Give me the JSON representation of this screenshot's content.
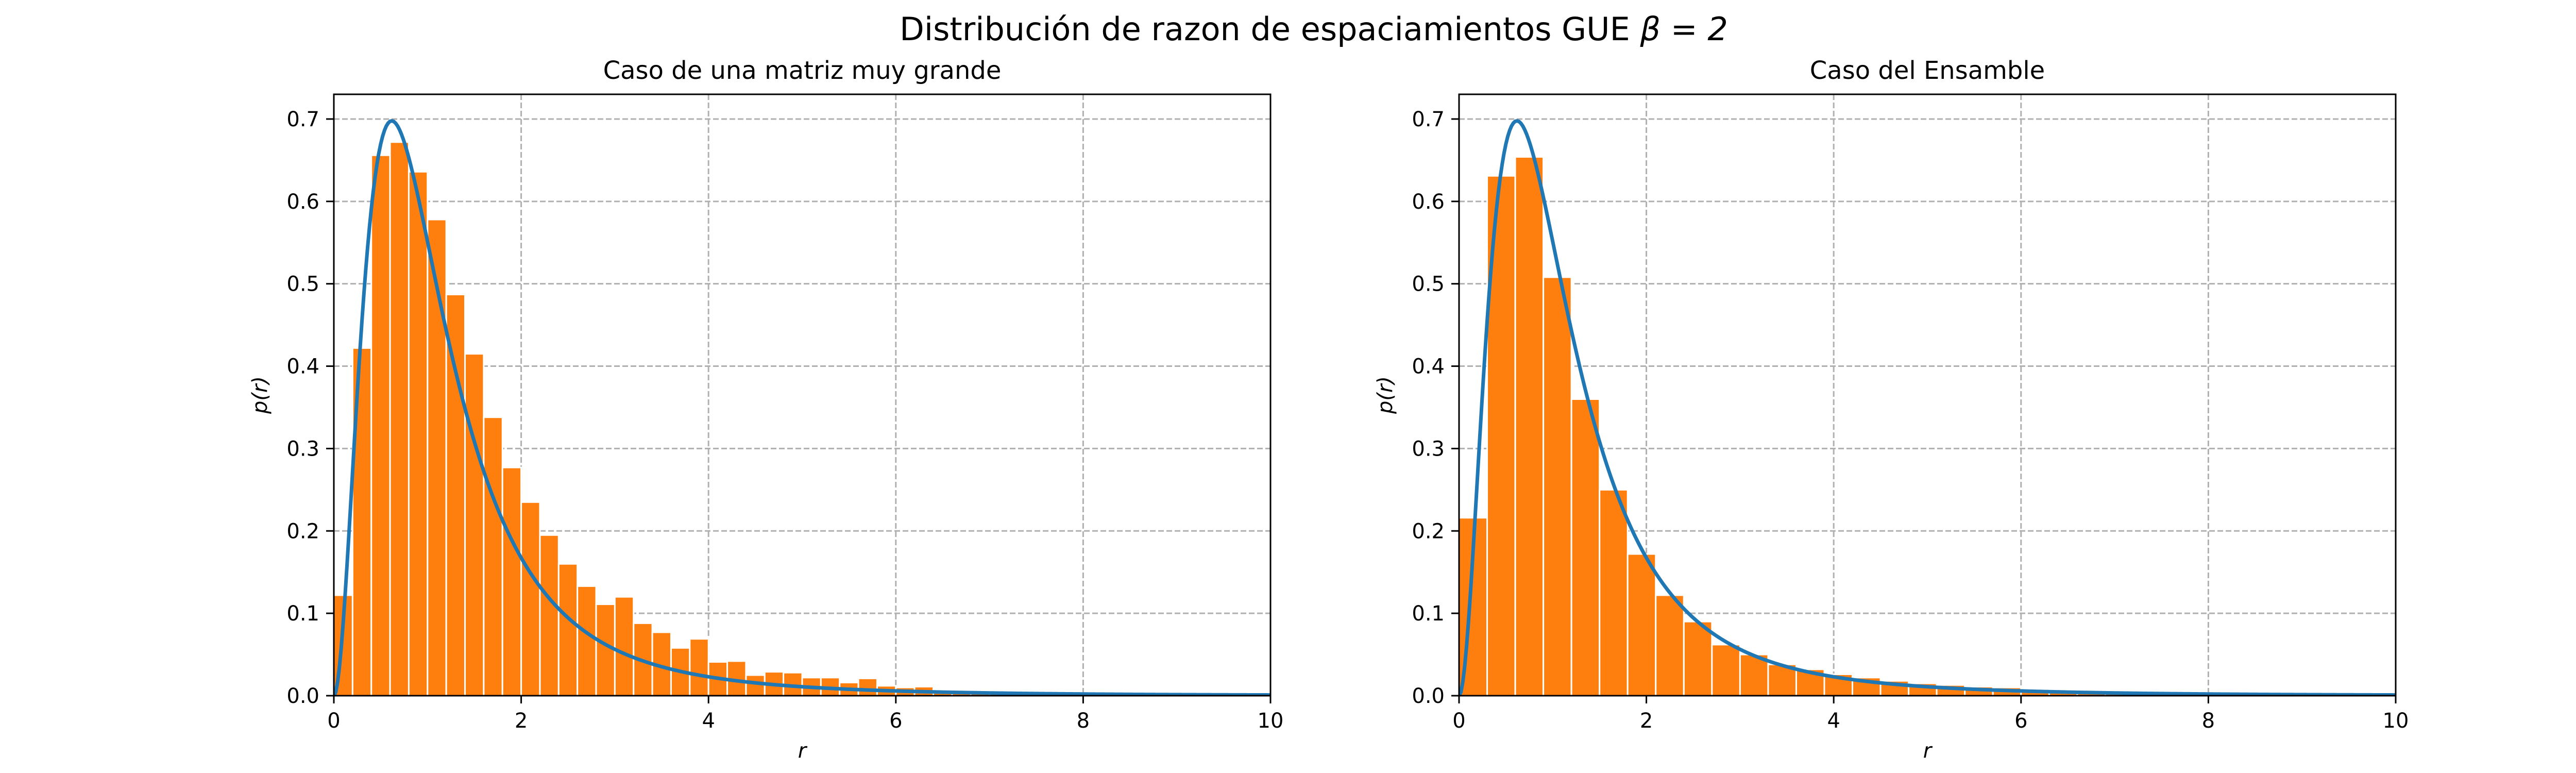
{
  "figure": {
    "suptitle_text": "Distribución de razon de espaciamientos GUE ",
    "suptitle_math": "β = 2"
  },
  "colors": {
    "bar_fill": "#ff7f0e",
    "bar_edge": "#ffffff",
    "curve": "#1f77b4",
    "grid": "#b0b0b0",
    "axes": "#000000"
  },
  "chart_data": [
    {
      "type": "bar",
      "title": "Caso de una matriz muy grande",
      "xlabel": "r",
      "ylabel": "p(r)",
      "xlim": [
        0,
        10
      ],
      "ylim": [
        0,
        0.73
      ],
      "xticks": [
        0,
        2,
        4,
        6,
        8,
        10
      ],
      "yticks": [
        0.0,
        0.1,
        0.2,
        0.3,
        0.4,
        0.5,
        0.6,
        0.7
      ],
      "grid": true,
      "histogram": {
        "bin_width": 0.2,
        "bin_start": 0,
        "values": [
          0.122,
          0.422,
          0.656,
          0.672,
          0.636,
          0.578,
          0.487,
          0.415,
          0.338,
          0.277,
          0.235,
          0.195,
          0.16,
          0.133,
          0.111,
          0.12,
          0.088,
          0.077,
          0.058,
          0.069,
          0.041,
          0.042,
          0.025,
          0.029,
          0.028,
          0.022,
          0.022,
          0.016,
          0.021,
          0.012,
          0.01,
          0.011,
          0.006,
          0.005,
          0.004,
          0.003,
          0.004,
          0.003,
          0.002,
          0.002,
          0.002,
          0.001,
          0.001,
          0.001,
          0.001,
          0.001,
          0.001,
          0.001,
          0.0,
          0.0
        ]
      },
      "curve": {
        "name": "",
        "formula": "P(r) = (81√3 / 4π) · (r + r²)^2 / (1 + r + r²)^(4)",
        "x_range": [
          0,
          10
        ]
      }
    },
    {
      "type": "bar",
      "title": "Caso del Ensamble",
      "xlabel": "r",
      "ylabel": "p(r)",
      "xlim": [
        0,
        10
      ],
      "ylim": [
        0,
        0.73
      ],
      "xticks": [
        0,
        2,
        4,
        6,
        8,
        10
      ],
      "yticks": [
        0.0,
        0.1,
        0.2,
        0.3,
        0.4,
        0.5,
        0.6,
        0.7
      ],
      "grid": true,
      "histogram": {
        "bin_width": 0.3,
        "bin_start": 0,
        "values": [
          0.216,
          0.631,
          0.654,
          0.508,
          0.36,
          0.25,
          0.172,
          0.122,
          0.09,
          0.062,
          0.05,
          0.038,
          0.032,
          0.026,
          0.022,
          0.018,
          0.015,
          0.013,
          0.011,
          0.01,
          0.008,
          0.007,
          0.006,
          0.005,
          0.004,
          0.003,
          0.003,
          0.003,
          0.002,
          0.002,
          0.002,
          0.001,
          0.001,
          0.001
        ]
      },
      "curve": {
        "name": "",
        "formula": "P(r) = (81√3 / 4π) · (r + r²)^2 / (1 + r + r²)^(4)",
        "x_range": [
          0,
          10
        ]
      }
    }
  ]
}
